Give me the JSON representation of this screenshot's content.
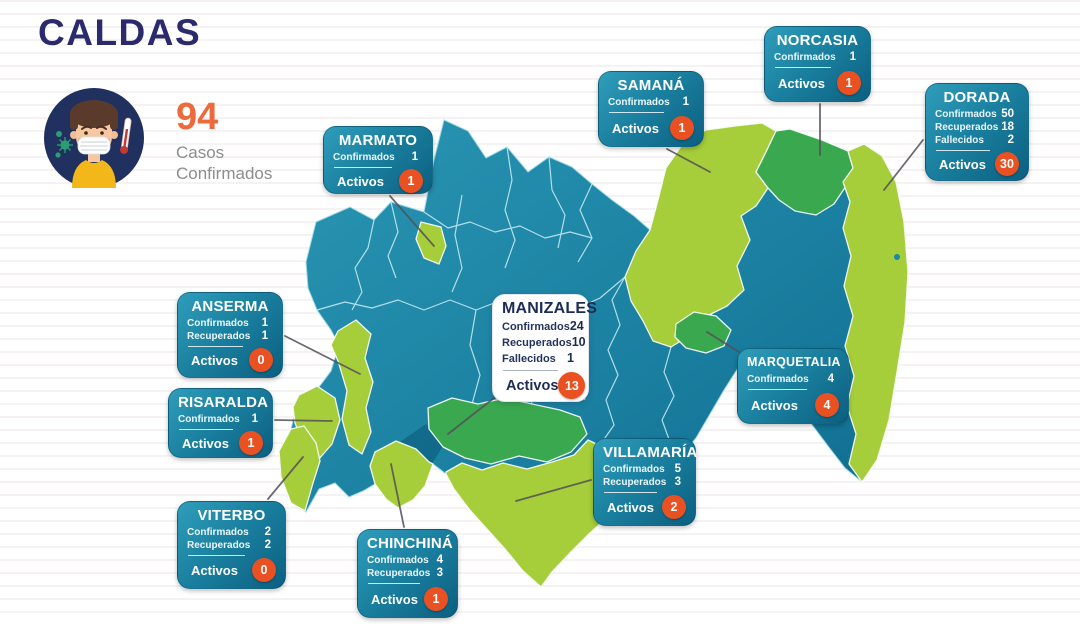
{
  "header": {
    "title": "CALDAS",
    "total_cases": "94",
    "cases_label_line1": "Casos",
    "cases_label_line2": "Confirmados"
  },
  "labels": {
    "activos": "Activos"
  },
  "municipalities": [
    {
      "name": "MARMATO",
      "stats": [
        {
          "label": "Confirmados",
          "value": "1"
        }
      ],
      "activos": "1"
    },
    {
      "name": "SAMANÁ",
      "stats": [
        {
          "label": "Confirmados",
          "value": "1"
        }
      ],
      "activos": "1"
    },
    {
      "name": "NORCASIA",
      "stats": [
        {
          "label": "Confirmados",
          "value": "1"
        }
      ],
      "activos": "1"
    },
    {
      "name": "DORADA",
      "stats": [
        {
          "label": "Confirmados",
          "value": "50"
        },
        {
          "label": "Recuperados",
          "value": "18"
        },
        {
          "label": "Fallecidos",
          "value": "2"
        }
      ],
      "activos": "30"
    },
    {
      "name": "ANSERMA",
      "stats": [
        {
          "label": "Confirmados",
          "value": "1"
        },
        {
          "label": "Recuperados",
          "value": "1"
        }
      ],
      "activos": "0"
    },
    {
      "name": "RISARALDA",
      "stats": [
        {
          "label": "Confirmados",
          "value": "1"
        }
      ],
      "activos": "1"
    },
    {
      "name": "VITERBO",
      "stats": [
        {
          "label": "Confirmados",
          "value": "2"
        },
        {
          "label": "Recuperados",
          "value": "2"
        }
      ],
      "activos": "0"
    },
    {
      "name": "CHINCHINÁ",
      "stats": [
        {
          "label": "Confirmados",
          "value": "4"
        },
        {
          "label": "Recuperados",
          "value": "3"
        }
      ],
      "activos": "1"
    },
    {
      "name": "MANIZALES",
      "stats": [
        {
          "label": "Confirmados",
          "value": "24"
        },
        {
          "label": "Recuperados",
          "value": "10"
        },
        {
          "label": "Fallecidos",
          "value": "1"
        }
      ],
      "activos": "13"
    },
    {
      "name": "VILLAMARÍA",
      "stats": [
        {
          "label": "Confirmados",
          "value": "5"
        },
        {
          "label": "Recuperados",
          "value": "3"
        }
      ],
      "activos": "2"
    },
    {
      "name": "MARQUETALIA",
      "stats": [
        {
          "label": "Confirmados",
          "value": "4"
        }
      ],
      "activos": "4"
    }
  ],
  "colors": {
    "accent_orange": "#e95123",
    "number_orange": "#ed6a3c",
    "box_teal": "#1a7f9f",
    "map_teal_light": "#2596b4",
    "map_teal_dark": "#0f6a8e",
    "map_light_green": "#a6cd3a",
    "map_medium_green": "#3aa84e",
    "title_navy": "#2b2a6c",
    "label_gray": "#8d8d8d"
  }
}
